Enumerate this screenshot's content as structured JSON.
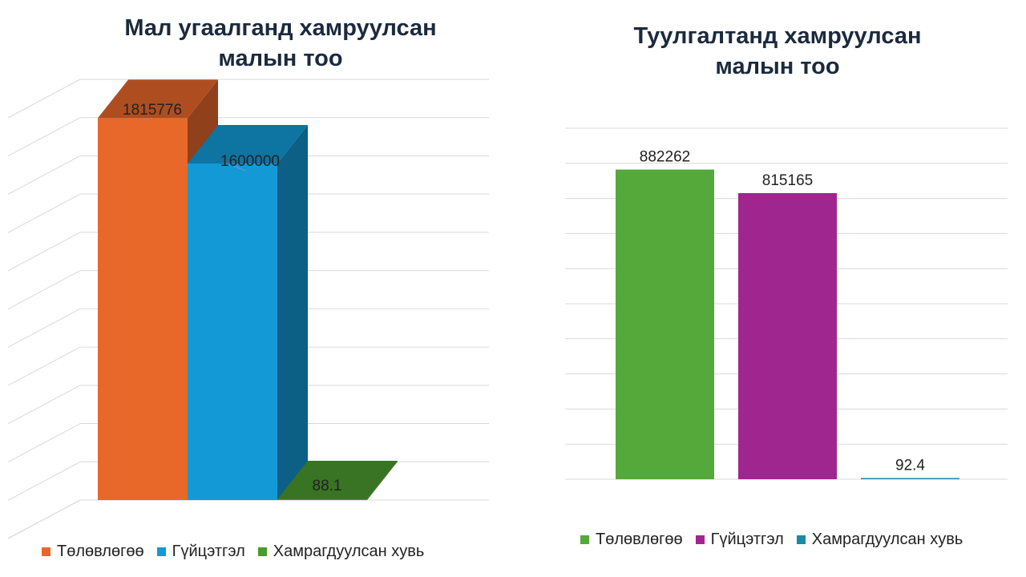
{
  "colors": {
    "plan_left": "#e8682a",
    "actual_left": "#139ad6",
    "coverage_left": "#4a9b2e",
    "plan_right": "#55a83a",
    "actual_right": "#a0268f",
    "coverage_right": "#1b8aa3",
    "title": "#1b2a3d",
    "grid": "#d9d9d9"
  },
  "chart_data": [
    {
      "type": "bar",
      "title": "Мал угаалганд хамруулсан\nмалын тоо",
      "categories": [
        "Төлөвлөгөө",
        "Гүйцэтгэл",
        "Хамрагдуулсан хувь"
      ],
      "values": [
        1815776,
        1600000,
        88.1
      ],
      "data_labels": [
        "1815776",
        "1600000",
        "88.1"
      ],
      "ylim": [
        0,
        2000000
      ],
      "grid": true,
      "legend_position": "bottom",
      "style": "3d"
    },
    {
      "type": "bar",
      "title": "Туулгалтанд хамруулсан\nмалын тоо",
      "categories": [
        "Төлөвлөгөө",
        "Гүйцэтгэл",
        "Хамрагдуулсан хувь"
      ],
      "values": [
        882262,
        815165,
        92.4
      ],
      "data_labels": [
        "882262",
        "815165",
        "92.4"
      ],
      "ylim": [
        0,
        1000000
      ],
      "grid": true,
      "legend_position": "bottom",
      "style": "flat"
    }
  ]
}
